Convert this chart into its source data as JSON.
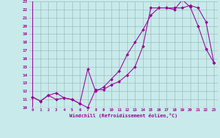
{
  "xlabel": "Windchill (Refroidissement éolien,°C)",
  "bg_color": "#c8eaea",
  "grid_color": "#9bbcbc",
  "line_color": "#990099",
  "xlim": [
    -0.5,
    23.5
  ],
  "ylim": [
    10,
    23
  ],
  "xticks": [
    0,
    1,
    2,
    3,
    4,
    5,
    6,
    7,
    8,
    9,
    10,
    11,
    12,
    13,
    14,
    15,
    16,
    17,
    18,
    19,
    20,
    21,
    22,
    23
  ],
  "yticks": [
    10,
    11,
    12,
    13,
    14,
    15,
    16,
    17,
    18,
    19,
    20,
    21,
    22,
    23
  ],
  "line1_x": [
    0,
    1,
    2,
    3,
    4,
    5,
    6,
    7,
    8,
    9,
    10,
    11,
    12,
    13,
    14,
    15,
    16,
    17,
    18,
    19,
    20,
    21,
    22,
    23
  ],
  "line1_y": [
    11.3,
    10.8,
    11.5,
    11.8,
    11.2,
    11.0,
    10.5,
    10.0,
    12.2,
    12.2,
    12.8,
    13.2,
    14.0,
    15.0,
    17.5,
    22.2,
    22.2,
    22.2,
    22.0,
    23.2,
    22.3,
    20.0,
    17.2,
    15.5
  ],
  "line2_x": [
    0,
    1,
    2,
    3,
    4,
    5,
    6,
    7,
    8,
    9,
    10,
    11,
    12,
    13,
    14,
    15,
    16,
    17,
    18,
    19,
    20,
    21,
    22,
    23
  ],
  "line2_y": [
    11.3,
    10.8,
    11.5,
    11.0,
    11.2,
    11.0,
    10.5,
    14.7,
    12.0,
    12.5,
    13.5,
    14.5,
    16.5,
    18.0,
    19.5,
    21.3,
    22.2,
    22.2,
    22.2,
    22.2,
    22.5,
    22.2,
    20.5,
    15.5
  ],
  "markersize": 2.5,
  "linewidth": 0.8
}
